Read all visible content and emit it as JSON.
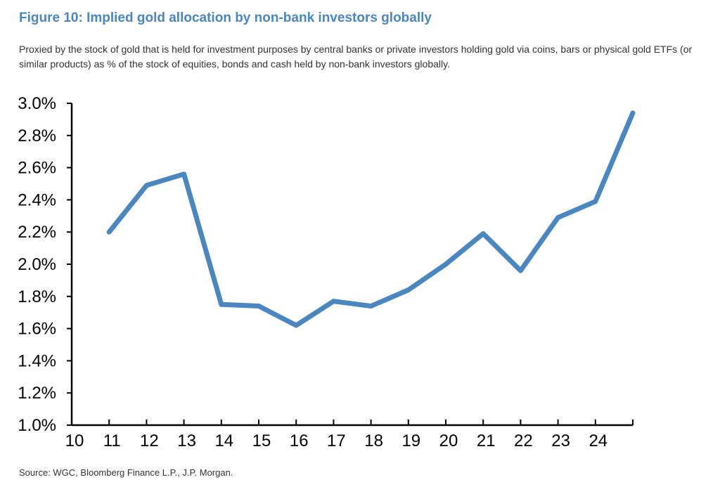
{
  "title": "Figure 10: Implied gold allocation by non-bank investors globally",
  "subtitle": "Proxied by the stock of gold that is held for investment purposes by central banks or private investors holding gold via coins, bars or physical gold ETFs (or similar products) as % of the stock of equities, bonds and cash held by non-bank investors globally.",
  "source": "Source: WGC, Bloomberg Finance L.P., J.P. Morgan.",
  "chart_data": {
    "type": "line",
    "title": "Figure 10: Implied gold allocation by non-bank investors globally",
    "xlabel": "",
    "ylabel": "",
    "ylim": [
      1.0,
      3.0
    ],
    "xlim": [
      10,
      25
    ],
    "grid": false,
    "line_color": "#4a86c0",
    "x_tick_labels": [
      "10",
      "11",
      "12",
      "13",
      "14",
      "15",
      "16",
      "17",
      "18",
      "19",
      "20",
      "21",
      "22",
      "23",
      "24"
    ],
    "y_tick_labels": [
      "1.0%",
      "1.2%",
      "1.4%",
      "1.6%",
      "1.8%",
      "2.0%",
      "2.2%",
      "2.4%",
      "2.6%",
      "2.8%",
      "3.0%"
    ],
    "x": [
      11,
      12,
      13,
      14,
      15,
      16,
      17,
      18,
      19,
      20,
      21,
      22,
      23,
      24,
      25
    ],
    "values": [
      2.2,
      2.49,
      2.56,
      1.75,
      1.74,
      1.62,
      1.77,
      1.74,
      1.84,
      2.0,
      2.19,
      1.96,
      2.29,
      2.39,
      2.94
    ]
  }
}
